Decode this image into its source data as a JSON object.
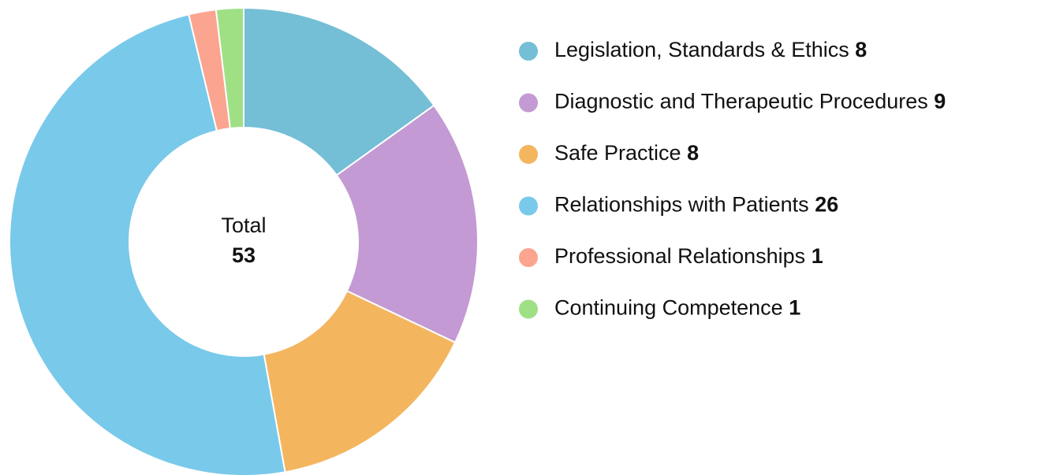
{
  "chart_data": {
    "type": "donut",
    "categories": [
      "Legislation, Standards & Ethics",
      "Diagnostic and Therapeutic Procedures",
      "Safe Practice",
      "Relationships with Patients",
      "Professional Relationships",
      "Continuing Competence"
    ],
    "values": [
      8,
      9,
      8,
      26,
      1,
      1
    ],
    "colors": [
      "#74bed6",
      "#c39ad3",
      "#f4b55f",
      "#79c9ea",
      "#fba48f",
      "#9fe085"
    ],
    "center_label": "Total",
    "total": 53,
    "legend": "right"
  }
}
